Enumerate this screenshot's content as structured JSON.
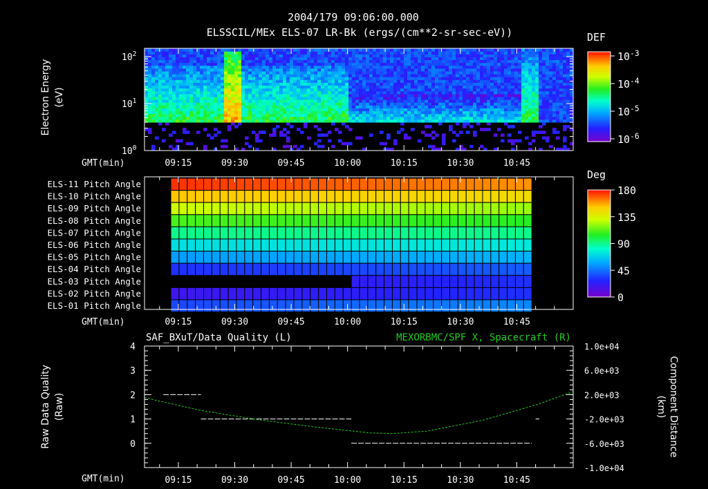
{
  "header": {
    "timestamp": "2004/179 09:06:00.000",
    "title": "ELSSCIL/MEx ELS-07 LR-Bk  (ergs/(cm**2-sr-sec-eV))"
  },
  "time_axis": {
    "label": "GMT(min)",
    "range_min": [
      0,
      114
    ],
    "ticks": [
      {
        "t": 9,
        "label": "09:15"
      },
      {
        "t": 24,
        "label": "09:30"
      },
      {
        "t": 39,
        "label": "09:45"
      },
      {
        "t": 54,
        "label": "10:00"
      },
      {
        "t": 69,
        "label": "10:15"
      },
      {
        "t": 84,
        "label": "10:30"
      },
      {
        "t": 99,
        "label": "10:45"
      }
    ]
  },
  "chart_data": [
    {
      "type": "heatmap",
      "name": "spectrogram",
      "ylabel": "Electron Energy",
      "yunit": "(eV)",
      "yscale": "log",
      "ylim": [
        1,
        150
      ],
      "yticks": [
        {
          "v": 1,
          "label": "10",
          "exp": "0"
        },
        {
          "v": 10,
          "label": "10",
          "exp": "1"
        },
        {
          "v": 100,
          "label": "10",
          "exp": "2"
        }
      ],
      "colorbar": {
        "title": "DEF",
        "scale": "log",
        "ticks": [
          {
            "label": "10",
            "exp": "-3"
          },
          {
            "label": "10",
            "exp": "-4"
          },
          {
            "label": "10",
            "exp": "-5"
          },
          {
            "label": "10",
            "exp": "-6"
          }
        ]
      },
      "features": [
        {
          "t_start": 0,
          "t_end": 54,
          "energy_top": 60,
          "level": "high"
        },
        {
          "t_start": 21,
          "t_end": 26,
          "energy_top": 120,
          "level": "peak"
        },
        {
          "t_start": 54,
          "t_end": 105,
          "energy_top": 15,
          "level": "low"
        },
        {
          "t_start": 100,
          "t_end": 105,
          "energy_top": 150,
          "level": "high"
        }
      ],
      "low_energy_cutoff_eV": 4.2
    },
    {
      "type": "heatmap",
      "name": "pitch-angle",
      "rows": [
        "ELS-11 Pitch Angle",
        "ELS-10 Pitch Angle",
        "ELS-09 Pitch Angle",
        "ELS-08 Pitch Angle",
        "ELS-07 Pitch Angle",
        "ELS-06 Pitch Angle",
        "ELS-05 Pitch Angle",
        "ELS-04 Pitch Angle",
        "ELS-03 Pitch Angle",
        "ELS-02 Pitch Angle",
        "ELS-01 Pitch Angle"
      ],
      "t_start": 7,
      "t_end": 103,
      "n_columns": 44,
      "values_deg_start": [
        175,
        152,
        130,
        110,
        90,
        72,
        55,
        30,
        15,
        18,
        35
      ],
      "values_deg_end": [
        160,
        145,
        122,
        105,
        90,
        75,
        60,
        40,
        30,
        30,
        50
      ],
      "els03_data_from_t": 54,
      "colorbar": {
        "title": "Deg",
        "min": 0,
        "max": 180,
        "ticks": [
          "180",
          "135",
          "90",
          "45",
          "0"
        ]
      }
    },
    {
      "type": "line",
      "name": "data-quality",
      "title_left": "SAF_BXuT/Data Quality (L)",
      "title_right": "MEXORBMC/SPF X, Spacecraft (R)",
      "ylabel_left": "Raw Data Quality",
      "yunit_left": "(Raw)",
      "ylim_left": [
        -1,
        4
      ],
      "yticks_left": [
        "4",
        "3",
        "2",
        "1",
        "0"
      ],
      "ylabel_right": "Component Distance",
      "yunit_right": "(km)",
      "ylim_right": [
        -10000,
        10000
      ],
      "yticks_right": [
        "1.0e+04",
        "6.0e+03",
        "2.0e+03",
        "-2.0e+03",
        "-6.0e+03",
        "-1.0e+04"
      ],
      "series": [
        {
          "name": "SAF_BXuT/Data Quality",
          "axis": "left",
          "color": "#ffffff",
          "segments": [
            {
              "t0": 5,
              "t1": 15,
              "v": 2
            },
            {
              "t0": 15,
              "t1": 55,
              "v": 1
            },
            {
              "t0": 55,
              "t1": 103,
              "v": 0
            },
            {
              "t0": 104,
              "t1": 105,
              "v": 1
            }
          ]
        },
        {
          "name": "MEXORBMC/SPF X, Spacecraft",
          "axis": "right",
          "color": "#22cc22",
          "x": [
            0,
            15,
            30,
            45,
            60,
            66,
            75,
            90,
            105,
            114
          ],
          "y": [
            1500,
            -600,
            -2100,
            -3300,
            -4300,
            -4400,
            -4000,
            -2200,
            500,
            2500
          ]
        }
      ]
    }
  ]
}
